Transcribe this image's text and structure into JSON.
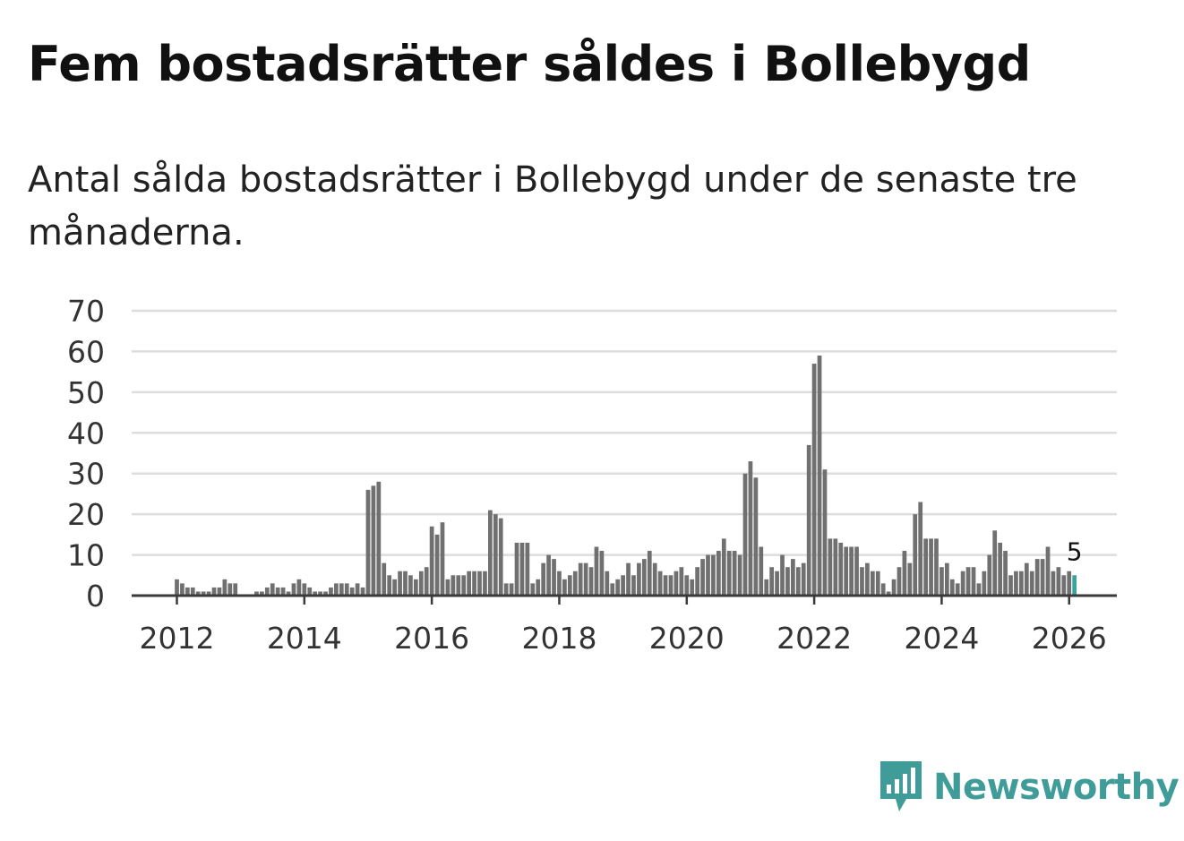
{
  "title": "Fem bostadsrätter såldes i Bollebygd",
  "subtitle": "Antal sålda bostadsrätter i Bollebygd under de senaste tre månaderna.",
  "brand": {
    "name": "Newsworthy"
  },
  "colors": {
    "bar": "#707070",
    "highlight": "#3aa39c",
    "grid": "#dddddd",
    "axis": "#3a3a3a",
    "brand": "#3f9c98"
  },
  "chart_data": {
    "type": "bar",
    "title": "Fem bostadsrätter såldes i Bollebygd",
    "xlabel": "",
    "ylabel": "",
    "ylim": [
      0,
      70
    ],
    "yticks": [
      "0",
      "10",
      "20",
      "30",
      "40",
      "50",
      "60",
      "70"
    ],
    "xticks": [
      "2012",
      "2014",
      "2016",
      "2018",
      "2020",
      "2022",
      "2024",
      "2026"
    ],
    "start": "2012-01",
    "grid": true,
    "highlight_label": "5",
    "values": [
      4,
      3,
      2,
      2,
      1,
      1,
      1,
      2,
      2,
      4,
      3,
      3,
      0,
      0,
      0,
      1,
      1,
      2,
      3,
      2,
      2,
      1,
      3,
      4,
      3,
      2,
      1,
      1,
      1,
      2,
      3,
      3,
      3,
      2,
      3,
      2,
      26,
      27,
      28,
      8,
      5,
      4,
      6,
      6,
      5,
      4,
      6,
      7,
      17,
      15,
      18,
      4,
      5,
      5,
      5,
      6,
      6,
      6,
      6,
      21,
      20,
      19,
      3,
      3,
      13,
      13,
      13,
      3,
      4,
      8,
      10,
      9,
      6,
      4,
      5,
      6,
      8,
      8,
      7,
      12,
      11,
      6,
      3,
      4,
      5,
      8,
      5,
      8,
      9,
      11,
      8,
      6,
      5,
      5,
      6,
      7,
      5,
      4,
      7,
      9,
      10,
      10,
      11,
      14,
      11,
      11,
      10,
      30,
      33,
      29,
      12,
      4,
      7,
      6,
      10,
      7,
      9,
      7,
      8,
      37,
      57,
      59,
      31,
      14,
      14,
      13,
      12,
      12,
      12,
      7,
      8,
      6,
      6,
      3,
      1,
      4,
      7,
      11,
      8,
      20,
      23,
      14,
      14,
      14,
      7,
      8,
      4,
      3,
      6,
      7,
      7,
      3,
      6,
      10,
      16,
      13,
      11,
      5,
      6,
      6,
      8,
      6,
      9,
      9,
      12,
      6,
      7,
      5,
      6,
      5
    ]
  }
}
